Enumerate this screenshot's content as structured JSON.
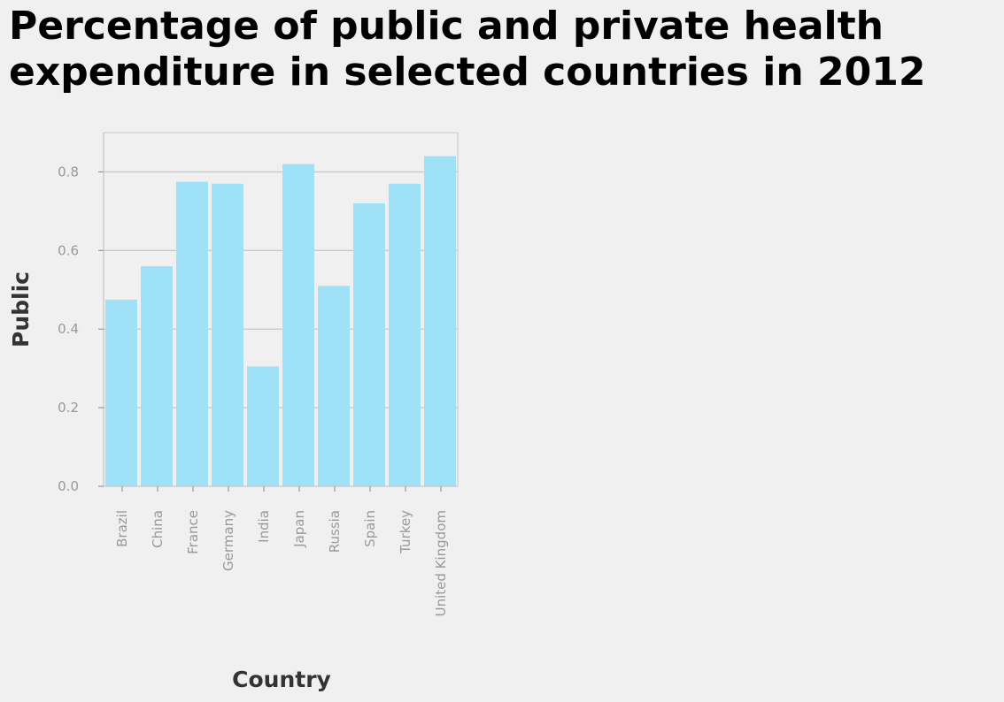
{
  "chart_data": {
    "type": "bar",
    "title": "Percentage of public and private health expenditure in selected countries in 2012",
    "xlabel": "Country",
    "ylabel": "Public",
    "categories": [
      "Brazil",
      "China",
      "France",
      "Germany",
      "India",
      "Japan",
      "Russia",
      "Spain",
      "Turkey",
      "United Kingdom"
    ],
    "values": [
      0.475,
      0.56,
      0.775,
      0.77,
      0.305,
      0.82,
      0.51,
      0.72,
      0.77,
      0.84
    ],
    "ylim": [
      0,
      0.9
    ],
    "yticks": [
      0.0,
      0.2,
      0.4,
      0.6,
      0.8
    ],
    "ytick_labels": [
      "0.0",
      "0.2",
      "0.4",
      "0.6",
      "0.8"
    ],
    "grid": true,
    "legend": false,
    "bar_color": "#9fe2f8"
  }
}
